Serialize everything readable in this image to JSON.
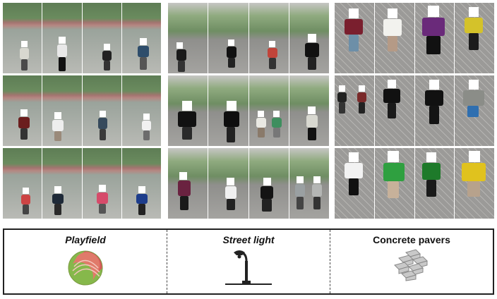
{
  "legend": {
    "items": [
      {
        "label": "Playfield",
        "icon": "playfield-icon"
      },
      {
        "label": "Street light",
        "icon": "street-light-icon"
      },
      {
        "label": "Concrete pavers",
        "icon": "concrete-pavers-icon"
      }
    ]
  },
  "colors": {
    "playfield_red": "#d55a5a",
    "playfield_green": "#86b84b",
    "street_light": "#222222",
    "pavers": "#c9c9c9"
  }
}
